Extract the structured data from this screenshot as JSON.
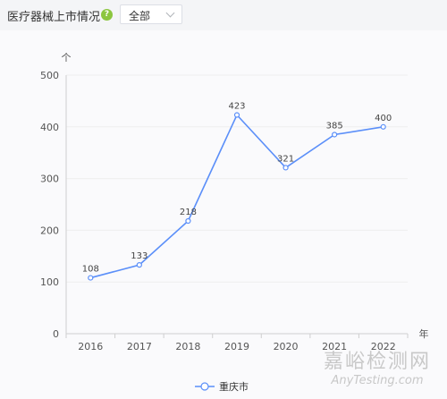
{
  "header": {
    "title": "医疗器械上市情况",
    "help_icon": "question-icon",
    "filter": {
      "value": "全部"
    }
  },
  "colors": {
    "line": "#5b8ff9",
    "grid": "#eeeeee",
    "help": "#8cc63f"
  },
  "chart_data": {
    "type": "line",
    "categories": [
      "2016",
      "2017",
      "2018",
      "2019",
      "2020",
      "2021",
      "2022"
    ],
    "series": [
      {
        "name": "重庆市",
        "values": [
          108,
          133,
          218,
          423,
          321,
          385,
          400
        ]
      }
    ],
    "title": "",
    "ylabel": "个",
    "xlabel": "年",
    "ylim": [
      0,
      500
    ],
    "yticks": [
      0,
      100,
      200,
      300,
      400,
      500
    ],
    "grid": true,
    "legend_position": "bottom"
  },
  "watermark": {
    "cn": "嘉峪检测网",
    "en": "AnyTesting.com"
  }
}
